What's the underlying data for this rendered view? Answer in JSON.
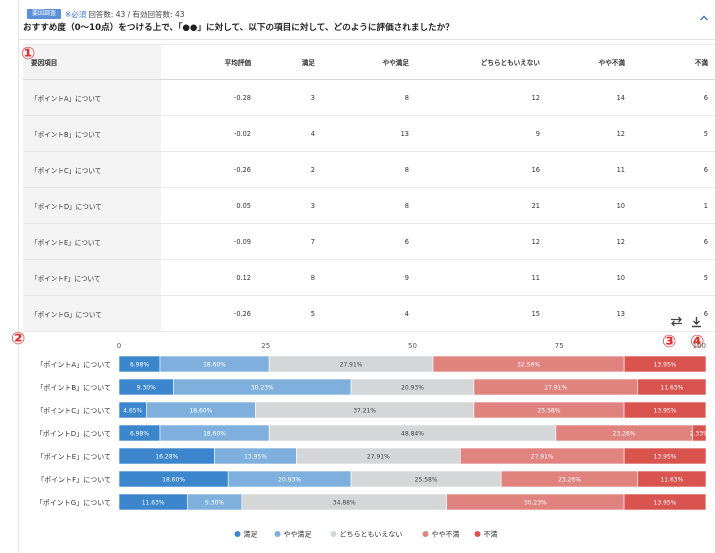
{
  "question": {
    "tag": "要因調査",
    "required": "※必須",
    "counts": "回答数: 43 / 有効回答数: 43",
    "title": "おすすめ度（0〜10点）をつける上で、「●●」に対して、以下の項目に対して、どのように評価されましたか？"
  },
  "icons": {
    "collapse": "chevron-up-icon",
    "swap": "swap-icon",
    "download": "download-icon"
  },
  "markers": [
    "①",
    "②",
    "③",
    "④"
  ],
  "table": {
    "headers": [
      "要因項目",
      "平均評価",
      "満足",
      "やや満足",
      "どちらともいえない",
      "やや不満",
      "不満"
    ],
    "rows": [
      [
        "「ポイントA」について",
        "-0.28",
        "3",
        "8",
        "12",
        "14",
        "6"
      ],
      [
        "「ポイントB」について",
        "-0.02",
        "4",
        "13",
        "9",
        "12",
        "5"
      ],
      [
        "「ポイントC」について",
        "-0.26",
        "2",
        "8",
        "16",
        "11",
        "6"
      ],
      [
        "「ポイントD」について",
        "0.05",
        "3",
        "8",
        "21",
        "10",
        "1"
      ],
      [
        "「ポイントE」について",
        "-0.09",
        "7",
        "6",
        "12",
        "12",
        "6"
      ],
      [
        "「ポイントF」について",
        "0.12",
        "8",
        "9",
        "11",
        "10",
        "5"
      ],
      [
        "「ポイントG」について",
        "-0.26",
        "5",
        "4",
        "15",
        "13",
        "6"
      ]
    ]
  },
  "chart_data": {
    "type": "bar",
    "orientation": "horizontal-stacked-100",
    "xlim": [
      0,
      100
    ],
    "xticks": [
      "0",
      "25",
      "50",
      "75",
      "100"
    ],
    "categories": [
      "「ポイントA」について",
      "「ポイントB」について",
      "「ポイントC」について",
      "「ポイントD」について",
      "「ポイントE」について",
      "「ポイントF」について",
      "「ポイントG」について"
    ],
    "series": [
      {
        "name": "満足",
        "color": "#3b86cc",
        "values": [
          6.98,
          9.3,
          4.65,
          6.98,
          16.28,
          18.6,
          11.63
        ],
        "labels": [
          "6.98%",
          "9.30%",
          "4.65%",
          "6.98%",
          "16.28%",
          "18.60%",
          "11.63%"
        ]
      },
      {
        "name": "やや満足",
        "color": "#7fb0dd",
        "values": [
          18.6,
          30.23,
          18.6,
          18.6,
          13.95,
          20.93,
          9.3
        ],
        "labels": [
          "18.60%",
          "30.23%",
          "18.60%",
          "18.60%",
          "13.95%",
          "20.93%",
          "9.30%"
        ]
      },
      {
        "name": "どちらともいえない",
        "color": "#d4d6d8",
        "values": [
          27.91,
          20.93,
          37.21,
          48.84,
          27.91,
          25.58,
          34.88
        ],
        "labels": [
          "27.91%",
          "20.93%",
          "37.21%",
          "48.84%",
          "27.91%",
          "25.58%",
          "34.88%"
        ]
      },
      {
        "name": "やや不満",
        "color": "#e0837f",
        "values": [
          32.56,
          27.91,
          25.58,
          23.26,
          27.91,
          23.26,
          30.23
        ],
        "labels": [
          "32.56%",
          "27.91%",
          "25.58%",
          "23.26%",
          "27.91%",
          "23.26%",
          "30.23%"
        ]
      },
      {
        "name": "不満",
        "color": "#d9534f",
        "values": [
          13.95,
          11.63,
          13.95,
          2.33,
          13.95,
          11.63,
          13.95
        ],
        "labels": [
          "13.95%",
          "11.63%",
          "13.95%",
          "2.33%",
          "13.95%",
          "11.63%",
          "13.95%"
        ]
      }
    ],
    "legend": "bottom-center",
    "grid": false
  }
}
